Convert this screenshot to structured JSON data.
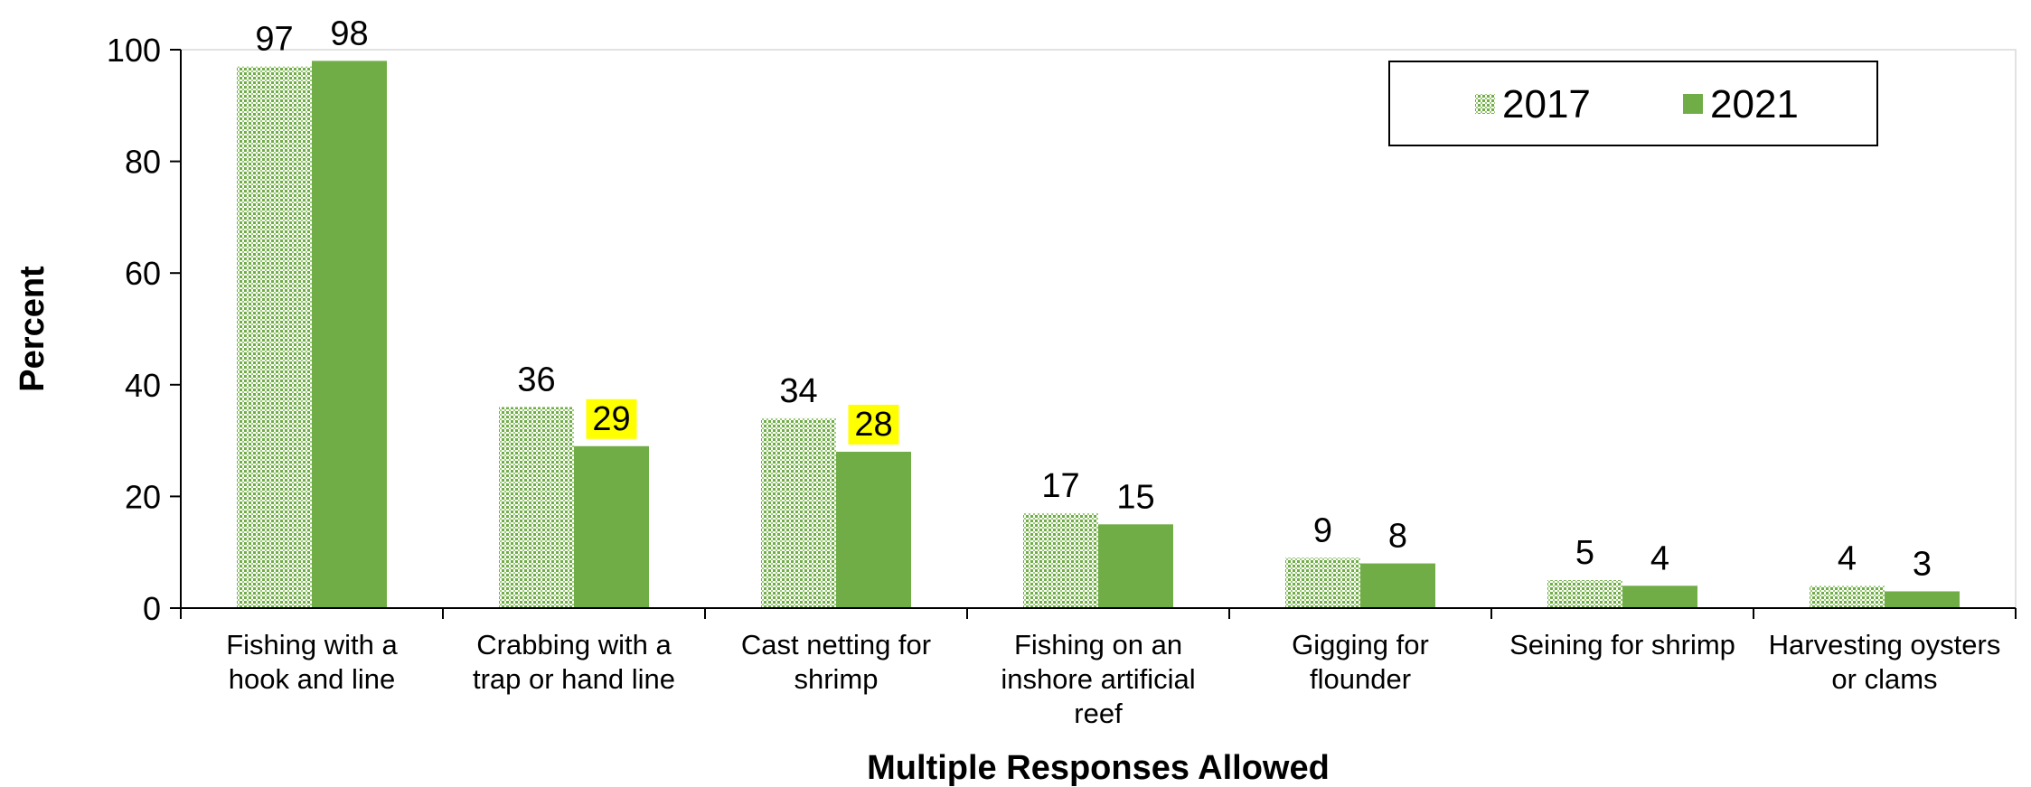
{
  "chart_data": {
    "type": "bar",
    "categories": [
      [
        "Fishing with a",
        "hook and line"
      ],
      [
        "Crabbing with a",
        "trap or hand line"
      ],
      [
        "Cast netting for",
        "shrimp"
      ],
      [
        "Fishing on an",
        "inshore artificial",
        "reef"
      ],
      [
        "Gigging for",
        "flounder"
      ],
      [
        "Seining for shrimp"
      ],
      [
        "Harvesting oysters",
        "or clams"
      ]
    ],
    "series": [
      {
        "name": "2017",
        "values": [
          97,
          36,
          34,
          17,
          9,
          5,
          4
        ],
        "color": "#70AD47",
        "pattern": "dotted"
      },
      {
        "name": "2021",
        "values": [
          98,
          29,
          28,
          15,
          8,
          4,
          3
        ],
        "color": "#70AD47",
        "pattern": "solid"
      }
    ],
    "highlighted_labels": [
      {
        "series": 1,
        "index": 1,
        "color": "#FFFF00"
      },
      {
        "series": 1,
        "index": 2,
        "color": "#FFFF00"
      }
    ],
    "xlabel": "Multiple Responses Allowed",
    "ylabel": "Percent",
    "ylim": [
      0,
      100
    ],
    "yticks": [
      0,
      20,
      40,
      60,
      80,
      100
    ],
    "grid": false,
    "legend": "top-right"
  }
}
